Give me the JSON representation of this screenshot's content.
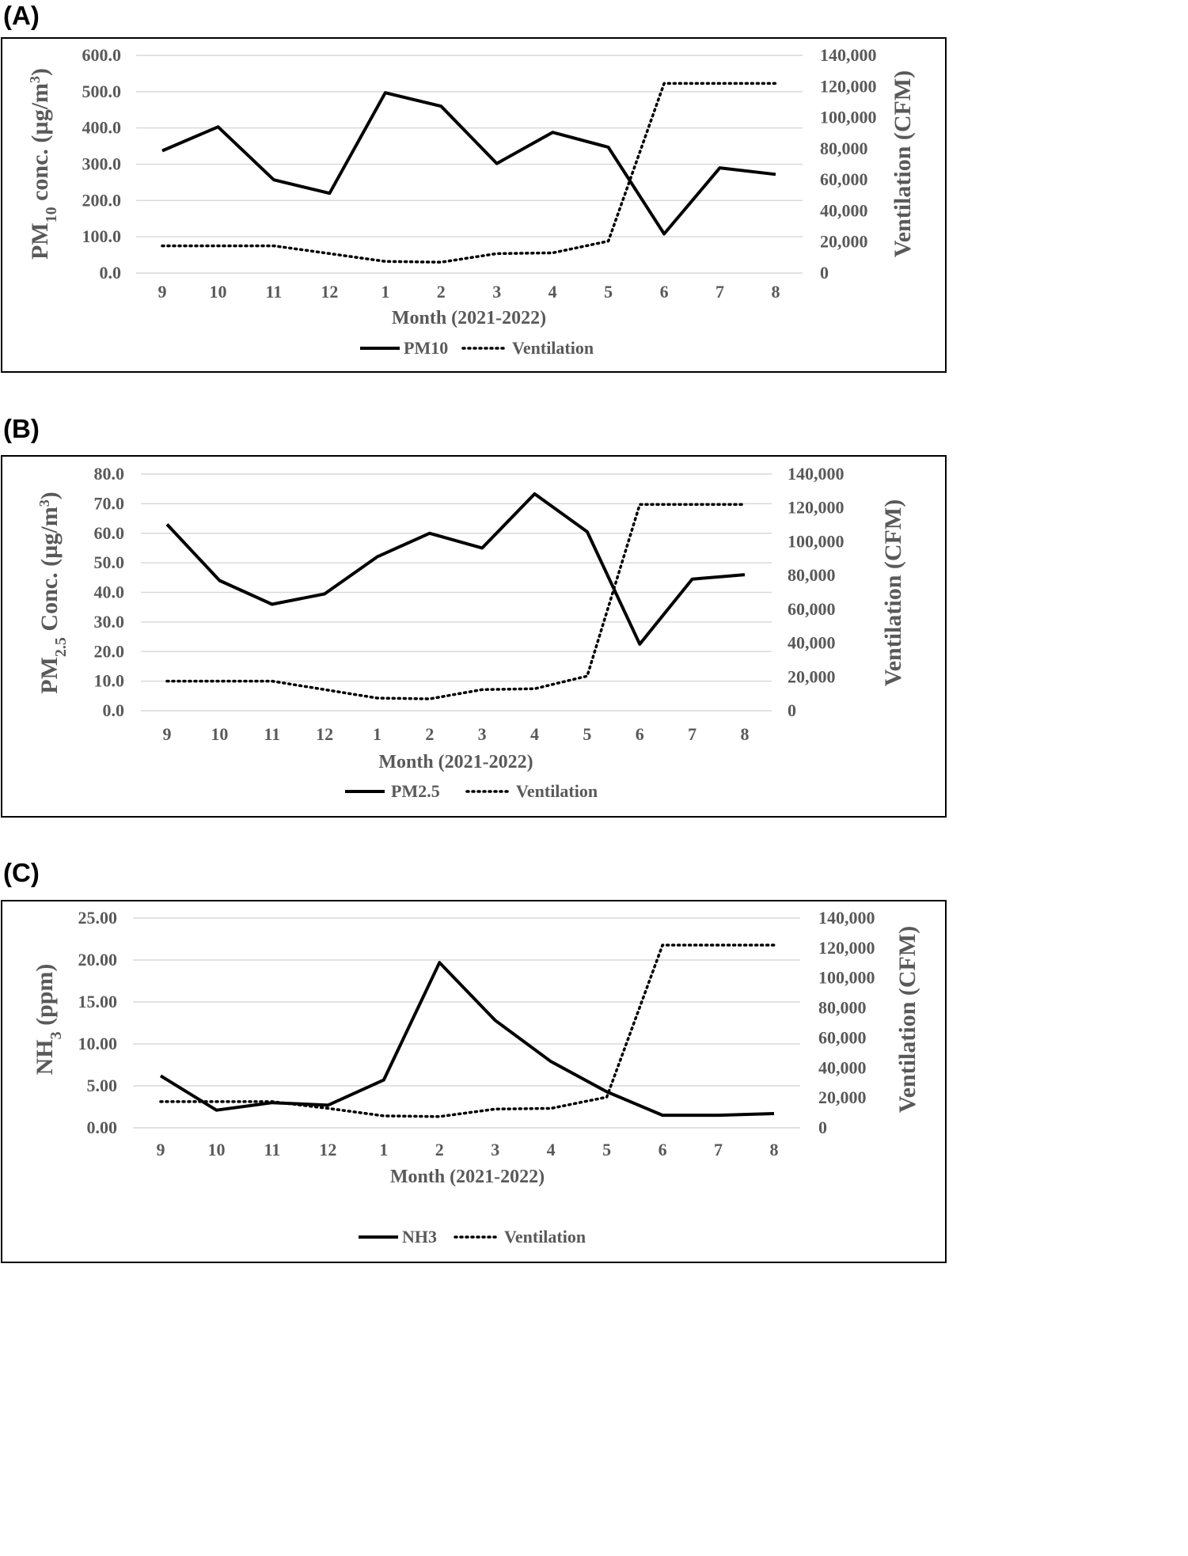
{
  "chart_data": [
    {
      "panel": "(A)",
      "type": "line",
      "categories": [
        "9",
        "10",
        "11",
        "12",
        "1",
        "2",
        "3",
        "4",
        "5",
        "6",
        "7",
        "8"
      ],
      "xlabel": "Month (2021-2022)",
      "ylabel": {
        "pre": "PM",
        "sub": "10",
        "mid": " conc. (µg/m",
        "sup": "3",
        "post": ")"
      },
      "y2label": "Ventilation (CFM)",
      "yticks": [
        "0.0",
        "100.0",
        "200.0",
        "300.0",
        "400.0",
        "500.0",
        "600.0"
      ],
      "ylim": [
        0,
        600
      ],
      "y2ticks": [
        "0",
        "20,000",
        "40,000",
        "60,000",
        "80,000",
        "100,000",
        "120,000",
        "140,000"
      ],
      "y2lim": [
        0,
        140000
      ],
      "series": [
        {
          "name": "PM10",
          "axis": "left",
          "style": "solid",
          "values": [
            337,
            403,
            257,
            220,
            497,
            460,
            302,
            388,
            347,
            108,
            290,
            272
          ]
        },
        {
          "name": "Ventilation",
          "axis": "right",
          "style": "dotted",
          "values": [
            17500,
            17500,
            17500,
            12500,
            7500,
            7000,
            12500,
            13000,
            20500,
            122000,
            122000,
            122000
          ]
        }
      ]
    },
    {
      "panel": "(B)",
      "type": "line",
      "categories": [
        "9",
        "10",
        "11",
        "12",
        "1",
        "2",
        "3",
        "4",
        "5",
        "6",
        "7",
        "8"
      ],
      "xlabel": "Month (2021-2022)",
      "ylabel": {
        "pre": "PM",
        "sub": "2.5",
        "mid": " Conc. (µg/m",
        "sup": "3",
        "post": ")"
      },
      "y2label": "Ventilation (CFM)",
      "yticks": [
        "0.0",
        "10.0",
        "20.0",
        "30.0",
        "40.0",
        "50.0",
        "60.0",
        "70.0",
        "80.0"
      ],
      "ylim": [
        0,
        80
      ],
      "y2ticks": [
        "0",
        "20,000",
        "40,000",
        "60,000",
        "80,000",
        "100,000",
        "120,000",
        "140,000"
      ],
      "y2lim": [
        0,
        140000
      ],
      "series": [
        {
          "name": "PM2.5",
          "axis": "left",
          "style": "solid",
          "values": [
            63,
            44,
            36,
            39.5,
            52,
            60,
            55,
            73.3,
            60.5,
            22.5,
            44.5,
            46
          ]
        },
        {
          "name": "Ventilation",
          "axis": "right",
          "style": "dotted",
          "values": [
            17500,
            17500,
            17500,
            12500,
            7500,
            7000,
            12500,
            13000,
            20500,
            122000,
            122000,
            122000
          ]
        }
      ]
    },
    {
      "panel": "(C)",
      "type": "line",
      "categories": [
        "9",
        "10",
        "11",
        "12",
        "1",
        "2",
        "3",
        "4",
        "5",
        "6",
        "7",
        "8"
      ],
      "xlabel": "Month (2021-2022)",
      "ylabel": {
        "pre": "NH",
        "sub": "3",
        "mid": " (ppm)",
        "sup": "",
        "post": ""
      },
      "y2label": "Ventilation (CFM)",
      "yticks": [
        "0.00",
        "5.00",
        "10.00",
        "15.00",
        "20.00",
        "25.00"
      ],
      "ylim": [
        0,
        25
      ],
      "y2ticks": [
        "0",
        "20,000",
        "40,000",
        "60,000",
        "80,000",
        "100,000",
        "120,000",
        "140,000"
      ],
      "y2lim": [
        0,
        140000
      ],
      "series": [
        {
          "name": "NH3",
          "axis": "left",
          "style": "solid",
          "values": [
            6.2,
            2.1,
            3.0,
            2.7,
            5.7,
            19.7,
            12.8,
            7.9,
            4.3,
            1.5,
            1.5,
            1.7
          ]
        },
        {
          "name": "Ventilation",
          "axis": "right",
          "style": "dotted",
          "values": [
            17500,
            17500,
            17500,
            13000,
            8000,
            7500,
            12500,
            13000,
            20500,
            122000,
            122000,
            122000
          ]
        }
      ]
    }
  ]
}
